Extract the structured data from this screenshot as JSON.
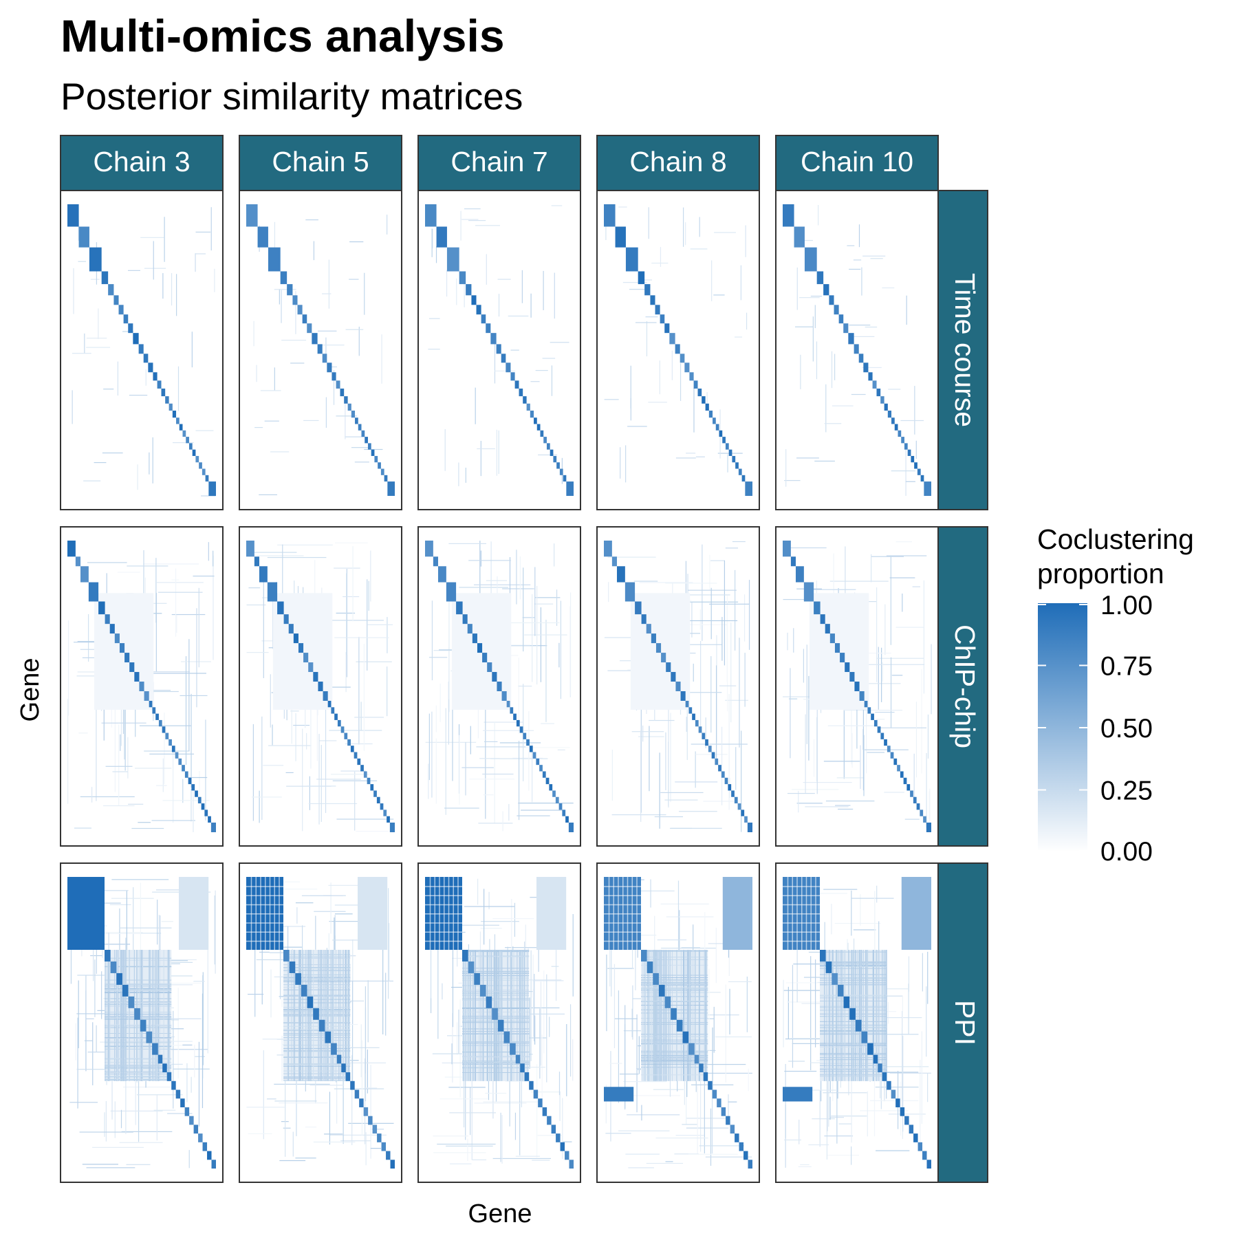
{
  "title": "Multi-omics analysis",
  "subtitle": "Posterior similarity matrices",
  "chart_data": {
    "type": "heatmap",
    "title": "Multi-omics analysis",
    "subtitle": "Posterior similarity matrices",
    "xlabel": "Gene",
    "ylabel": "Gene",
    "columns": [
      "Chain 3",
      "Chain 5",
      "Chain 7",
      "Chain 8",
      "Chain 10"
    ],
    "rows": [
      "Time course",
      "ChIP-chip",
      "PPI"
    ],
    "legend": {
      "title": "Coclustering\nproportion",
      "title_lines": [
        "Coclustering",
        "proportion"
      ],
      "ticks": [
        "1.00",
        "0.75",
        "0.50",
        "0.25",
        "0.00"
      ],
      "range": [
        0,
        1
      ],
      "low_color": "#ffffff",
      "high_color": "#1f6db8",
      "placement": "right"
    },
    "colors": {
      "strip": "#226a80",
      "strip_text": "#ffffff",
      "panel_border": "#333333"
    },
    "panels": [
      {
        "row": "Time course",
        "column": "Chain 3"
      },
      {
        "row": "Time course",
        "column": "Chain 5"
      },
      {
        "row": "Time course",
        "column": "Chain 7"
      },
      {
        "row": "Time course",
        "column": "Chain 8"
      },
      {
        "row": "Time course",
        "column": "Chain 10"
      },
      {
        "row": "ChIP-chip",
        "column": "Chain 3"
      },
      {
        "row": "ChIP-chip",
        "column": "Chain 5"
      },
      {
        "row": "ChIP-chip",
        "column": "Chain 7"
      },
      {
        "row": "ChIP-chip",
        "column": "Chain 8"
      },
      {
        "row": "ChIP-chip",
        "column": "Chain 10"
      },
      {
        "row": "PPI",
        "column": "Chain 3"
      },
      {
        "row": "PPI",
        "column": "Chain 5"
      },
      {
        "row": "PPI",
        "column": "Chain 7"
      },
      {
        "row": "PPI",
        "column": "Chain 8"
      },
      {
        "row": "PPI",
        "column": "Chain 10"
      }
    ]
  }
}
